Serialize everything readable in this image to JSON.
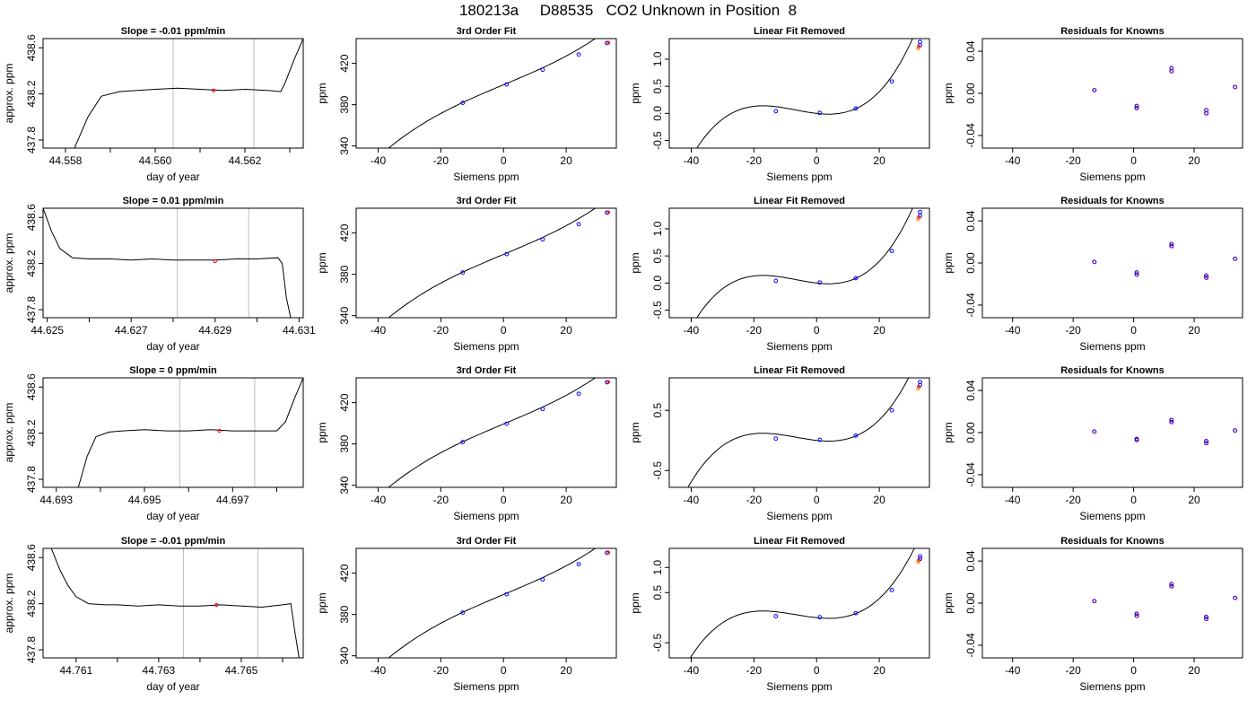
{
  "page_title": "180213a     D88535   CO2 Unknown in Position  8",
  "colors": {
    "line": "#000000",
    "marker_primary": "#0000ff",
    "marker_secondary": "#ff0000",
    "gridline": "#bebebe",
    "background": "#ffffff"
  },
  "chart_data": [
    {
      "type": "line",
      "title": "Slope =  -0.01  ppm/min",
      "xlabel": "day of year",
      "ylabel": "approx. ppm",
      "xlim": [
        44.5575,
        44.5633
      ],
      "ylim": [
        437.73,
        438.68
      ],
      "xticks": [
        "44.558",
        "44.560",
        "44.562"
      ],
      "xtick_values": [
        44.558,
        44.56,
        44.562
      ],
      "minor_xticks": [
        44.559,
        44.561,
        44.563
      ],
      "yticks": [
        "437.8",
        "438.2",
        "438.6"
      ],
      "ytick_values": [
        437.8,
        438.2,
        438.6
      ],
      "vlines": [
        44.5604,
        44.5622
      ],
      "series": [
        {
          "x": [
            44.5582,
            44.5585,
            44.5588,
            44.5592,
            44.5596,
            44.56,
            44.5605,
            44.561,
            44.5615,
            44.562,
            44.5625,
            44.5628,
            44.5629,
            44.5631,
            44.5633
          ],
          "y": [
            437.73,
            438.0,
            438.18,
            438.22,
            438.23,
            438.24,
            438.25,
            438.24,
            438.23,
            438.24,
            438.23,
            438.22,
            438.3,
            438.5,
            438.68
          ]
        }
      ],
      "highlight_points": [
        {
          "x": 44.5613,
          "y": 438.23
        }
      ]
    },
    {
      "type": "line",
      "title": "3rd Order Fit",
      "xlabel": "Siemens ppm",
      "ylabel": "ppm",
      "xlim": [
        -47,
        36
      ],
      "ylim": [
        338,
        444
      ],
      "xticks": [
        "-40",
        "-20",
        "0",
        "20"
      ],
      "xtick_values": [
        -40,
        -20,
        0,
        20
      ],
      "yticks": [
        "340",
        "380",
        "420"
      ],
      "ytick_values": [
        340,
        380,
        420
      ],
      "curve": "fit",
      "x_from": -45,
      "x_to": 33.5,
      "points_x": [
        -13,
        1,
        12.5,
        24,
        33
      ],
      "points_y": [
        381.8,
        399.6,
        413.9,
        428.6,
        439.7
      ],
      "extra_x": [
        33.4,
        33.4
      ]
    },
    {
      "type": "line",
      "title": "Linear Fit Removed",
      "xlabel": "Siemens ppm",
      "ylabel": "ppm",
      "xlim": [
        -47,
        36
      ],
      "ylim": [
        -0.64,
        1.38
      ],
      "xticks": [
        "-40",
        "-20",
        "0",
        "20"
      ],
      "xtick_values": [
        -40,
        -20,
        0,
        20
      ],
      "yticks": [
        "-0.5",
        "0.0",
        "0.5",
        "1.0"
      ],
      "ytick_values": [
        -0.5,
        0,
        0.5,
        1.0
      ],
      "curve": "cubic",
      "cubic_scale": 1.0,
      "x_from": -45,
      "x_to": 33.5,
      "points_x": [
        -13,
        1,
        12.5,
        24,
        33,
        33
      ],
      "points_y": [
        0.04,
        0.01,
        0.09,
        0.59,
        1.26,
        1.32
      ]
    },
    {
      "type": "scatter",
      "title": "Residuals for Knowns",
      "xlabel": "Siemens ppm",
      "ylabel": "ppm",
      "xlim": [
        -50,
        36
      ],
      "ylim": [
        -0.052,
        0.052
      ],
      "xticks": [
        "-40",
        "-20",
        "0",
        "20"
      ],
      "xtick_values": [
        -40,
        -20,
        0,
        20
      ],
      "yticks": [
        "-0.04",
        "0.00",
        "0.04"
      ],
      "ytick_values": [
        -0.04,
        0,
        0.04
      ],
      "points_x": [
        -13,
        1,
        1,
        12.5,
        12.5,
        24,
        24,
        33.5
      ],
      "points_y": [
        0.003,
        -0.012,
        -0.014,
        0.021,
        0.024,
        -0.016,
        -0.019,
        0.006
      ]
    },
    {
      "type": "line",
      "title": "Slope =  0.01  ppm/min",
      "xlabel": "day of year",
      "ylabel": "approx. ppm",
      "xlim": [
        44.6249,
        44.6311
      ],
      "ylim": [
        437.73,
        438.68
      ],
      "xticks": [
        "44.625",
        "44.627",
        "44.629",
        "44.631"
      ],
      "xtick_values": [
        44.625,
        44.627,
        44.629,
        44.631
      ],
      "minor_xticks": [
        44.626,
        44.628,
        44.63
      ],
      "yticks": [
        "437.8",
        "438.2",
        "438.6"
      ],
      "ytick_values": [
        437.8,
        438.2,
        438.6
      ],
      "vlines": [
        44.6281,
        44.6298
      ],
      "series": [
        {
          "x": [
            44.6249,
            44.6251,
            44.6253,
            44.6256,
            44.626,
            44.6265,
            44.627,
            44.6275,
            44.628,
            44.6285,
            44.629,
            44.6295,
            44.63,
            44.6305,
            44.6306,
            44.6307,
            44.6308
          ],
          "y": [
            438.68,
            438.48,
            438.33,
            438.25,
            438.24,
            438.24,
            438.23,
            438.24,
            438.23,
            438.23,
            438.23,
            438.24,
            438.24,
            438.25,
            438.2,
            437.9,
            437.73
          ]
        }
      ],
      "highlight_points": [
        {
          "x": 44.629,
          "y": 438.22
        }
      ]
    },
    {
      "type": "line",
      "title": "3rd Order Fit",
      "xlabel": "Siemens ppm",
      "ylabel": "ppm",
      "xlim": [
        -47,
        36
      ],
      "ylim": [
        338,
        444
      ],
      "xticks": [
        "-40",
        "-20",
        "0",
        "20"
      ],
      "xtick_values": [
        -40,
        -20,
        0,
        20
      ],
      "yticks": [
        "340",
        "380",
        "420"
      ],
      "ytick_values": [
        340,
        380,
        420
      ],
      "curve": "fit",
      "x_from": -45,
      "x_to": 33.5,
      "points_x": [
        -13,
        1,
        12.5,
        24,
        33
      ],
      "points_y": [
        381.8,
        399.6,
        413.9,
        428.6,
        439.7
      ],
      "extra_x": [
        33.4,
        33.4
      ]
    },
    {
      "type": "line",
      "title": "Linear Fit Removed",
      "xlabel": "Siemens ppm",
      "ylabel": "ppm",
      "xlim": [
        -47,
        36
      ],
      "ylim": [
        -0.64,
        1.38
      ],
      "xticks": [
        "-40",
        "-20",
        "0",
        "20"
      ],
      "xtick_values": [
        -40,
        -20,
        0,
        20
      ],
      "yticks": [
        "-0.5",
        "0.0",
        "0.5",
        "1.0"
      ],
      "ytick_values": [
        -0.5,
        0,
        0.5,
        1.0
      ],
      "curve": "cubic",
      "cubic_scale": 1.0,
      "x_from": -45,
      "x_to": 33.5,
      "points_x": [
        -13,
        1,
        12.5,
        24,
        33,
        33
      ],
      "points_y": [
        0.04,
        0.01,
        0.09,
        0.59,
        1.24,
        1.31
      ]
    },
    {
      "type": "scatter",
      "title": "Residuals for Knowns",
      "xlabel": "Siemens ppm",
      "ylabel": "ppm",
      "xlim": [
        -50,
        36
      ],
      "ylim": [
        -0.052,
        0.052
      ],
      "xticks": [
        "-40",
        "-20",
        "0",
        "20"
      ],
      "xtick_values": [
        -40,
        -20,
        0,
        20
      ],
      "yticks": [
        "-0.04",
        "0.00",
        "0.04"
      ],
      "ytick_values": [
        -0.04,
        0,
        0.04
      ],
      "points_x": [
        -13,
        1,
        1,
        12.5,
        12.5,
        24,
        24,
        33.5
      ],
      "points_y": [
        0.001,
        -0.009,
        -0.011,
        0.016,
        0.018,
        -0.012,
        -0.014,
        0.004
      ]
    },
    {
      "type": "line",
      "title": "Slope =  0  ppm/min",
      "xlabel": "day of year",
      "ylabel": "approx. ppm",
      "xlim": [
        44.6927,
        44.6986
      ],
      "ylim": [
        437.73,
        438.68
      ],
      "xticks": [
        "44.693",
        "44.695",
        "44.697"
      ],
      "xtick_values": [
        44.693,
        44.695,
        44.697
      ],
      "minor_xticks": [
        44.694,
        44.696,
        44.698
      ],
      "yticks": [
        "437.8",
        "438.2",
        "438.6"
      ],
      "ytick_values": [
        437.8,
        438.2,
        438.6
      ],
      "vlines": [
        44.6958,
        44.6975
      ],
      "series": [
        {
          "x": [
            44.6935,
            44.6937,
            44.6939,
            44.6942,
            44.6945,
            44.695,
            44.6955,
            44.696,
            44.6965,
            44.697,
            44.6975,
            44.698,
            44.6982,
            44.6984,
            44.6986
          ],
          "y": [
            437.73,
            438.0,
            438.17,
            438.21,
            438.22,
            438.23,
            438.22,
            438.22,
            438.23,
            438.22,
            438.22,
            438.22,
            438.3,
            438.5,
            438.68
          ]
        }
      ],
      "highlight_points": [
        {
          "x": 44.6967,
          "y": 438.22
        }
      ]
    },
    {
      "type": "line",
      "title": "3rd Order Fit",
      "xlabel": "Siemens ppm",
      "ylabel": "ppm",
      "xlim": [
        -47,
        36
      ],
      "ylim": [
        338,
        444
      ],
      "xticks": [
        "-40",
        "-20",
        "0",
        "20"
      ],
      "xtick_values": [
        -40,
        -20,
        0,
        20
      ],
      "yticks": [
        "340",
        "380",
        "420"
      ],
      "ytick_values": [
        340,
        380,
        420
      ],
      "curve": "fit",
      "x_from": -45,
      "x_to": 33.5,
      "points_x": [
        -13,
        1,
        12.5,
        24,
        33
      ],
      "points_y": [
        381.8,
        399.6,
        413.9,
        428.6,
        439.7
      ],
      "extra_x": [
        33.4,
        33.4
      ]
    },
    {
      "type": "line",
      "title": "Linear Fit Removed",
      "xlabel": "Siemens ppm",
      "ylabel": "ppm",
      "xlim": [
        -47,
        36
      ],
      "ylim": [
        -0.78,
        1.04
      ],
      "xticks": [
        "-40",
        "-20",
        "0",
        "20"
      ],
      "xtick_values": [
        -40,
        -20,
        0,
        20
      ],
      "yticks": [
        "-0.5",
        "0.5"
      ],
      "ytick_values": [
        -0.5,
        0.5
      ],
      "curve": "cubic",
      "cubic_scale": 0.85,
      "x_from": -45,
      "x_to": 33.5,
      "points_x": [
        -13,
        1,
        12.5,
        24,
        33,
        33
      ],
      "points_y": [
        0.03,
        0.01,
        0.08,
        0.5,
        0.92,
        0.97
      ]
    },
    {
      "type": "scatter",
      "title": "Residuals for Knowns",
      "xlabel": "Siemens ppm",
      "ylabel": "ppm",
      "xlim": [
        -50,
        36
      ],
      "ylim": [
        -0.052,
        0.052
      ],
      "xticks": [
        "-40",
        "-20",
        "0",
        "20"
      ],
      "xtick_values": [
        -40,
        -20,
        0,
        20
      ],
      "yticks": [
        "-0.04",
        "0.00",
        "0.04"
      ],
      "ytick_values": [
        -0.04,
        0,
        0.04
      ],
      "points_x": [
        -13,
        1,
        1,
        12.5,
        12.5,
        24,
        24,
        33.5
      ],
      "points_y": [
        0.001,
        -0.006,
        -0.007,
        0.01,
        0.012,
        -0.008,
        -0.01,
        0.002
      ]
    },
    {
      "type": "line",
      "title": "Slope =  -0.01  ppm/min",
      "xlabel": "day of year",
      "ylabel": "approx. ppm",
      "xlim": [
        44.7602,
        44.7665
      ],
      "ylim": [
        437.73,
        438.68
      ],
      "xticks": [
        "44.761",
        "44.763",
        "44.765"
      ],
      "xtick_values": [
        44.761,
        44.763,
        44.765
      ],
      "minor_xticks": [
        44.762,
        44.764,
        44.766
      ],
      "yticks": [
        "437.8",
        "438.2",
        "438.6"
      ],
      "ytick_values": [
        437.8,
        438.2,
        438.6
      ],
      "vlines": [
        44.7636,
        44.7654
      ],
      "series": [
        {
          "x": [
            44.7604,
            44.7606,
            44.7608,
            44.761,
            44.7613,
            44.7617,
            44.762,
            44.7625,
            44.763,
            44.7635,
            44.764,
            44.7645,
            44.765,
            44.7655,
            44.766,
            44.7662,
            44.7663,
            44.7664
          ],
          "y": [
            438.68,
            438.5,
            438.36,
            438.26,
            438.2,
            438.19,
            438.19,
            438.18,
            438.19,
            438.18,
            438.18,
            438.19,
            438.18,
            438.17,
            438.19,
            438.2,
            437.95,
            437.73
          ]
        }
      ],
      "highlight_points": [
        {
          "x": 44.7644,
          "y": 438.19
        }
      ]
    },
    {
      "type": "line",
      "title": "3rd Order Fit",
      "xlabel": "Siemens ppm",
      "ylabel": "ppm",
      "xlim": [
        -47,
        36
      ],
      "ylim": [
        338,
        444
      ],
      "xticks": [
        "-40",
        "-20",
        "0",
        "20"
      ],
      "xtick_values": [
        -40,
        -20,
        0,
        20
      ],
      "yticks": [
        "340",
        "380",
        "420"
      ],
      "ytick_values": [
        340,
        380,
        420
      ],
      "curve": "fit",
      "x_from": -45,
      "x_to": 33.5,
      "points_x": [
        -13,
        1,
        12.5,
        24,
        33
      ],
      "points_y": [
        381.8,
        399.6,
        413.9,
        428.6,
        439.7
      ],
      "extra_x": [
        33.4,
        33.4
      ]
    },
    {
      "type": "line",
      "title": "Linear Fit Removed",
      "xlabel": "Siemens ppm",
      "ylabel": "ppm",
      "xlim": [
        -47,
        36
      ],
      "ylim": [
        -0.8,
        1.38
      ],
      "xticks": [
        "-40",
        "-20",
        "0",
        "20"
      ],
      "xtick_values": [
        -40,
        -20,
        0,
        20
      ],
      "yticks": [
        "-0.5",
        "0.5",
        "1.0"
      ],
      "ytick_values": [
        -0.5,
        0.5,
        1.0
      ],
      "curve": "cubic",
      "cubic_scale": 0.95,
      "x_from": -45,
      "x_to": 33.5,
      "points_x": [
        -13,
        1,
        12.5,
        24,
        33,
        33
      ],
      "points_y": [
        0.03,
        0.01,
        0.09,
        0.55,
        1.17,
        1.22
      ]
    },
    {
      "type": "scatter",
      "title": "Residuals for Knowns",
      "xlabel": "Siemens ppm",
      "ylabel": "ppm",
      "xlim": [
        -50,
        36
      ],
      "ylim": [
        -0.052,
        0.052
      ],
      "xticks": [
        "-40",
        "-20",
        "0",
        "20"
      ],
      "xtick_values": [
        -40,
        -20,
        0,
        20
      ],
      "yticks": [
        "-0.04",
        "0.00",
        "0.04"
      ],
      "ytick_values": [
        -0.04,
        0,
        0.04
      ],
      "points_x": [
        -13,
        1,
        1,
        12.5,
        12.5,
        24,
        24,
        33.5
      ],
      "points_y": [
        0.002,
        -0.01,
        -0.012,
        0.016,
        0.018,
        -0.013,
        -0.015,
        0.005
      ]
    }
  ]
}
